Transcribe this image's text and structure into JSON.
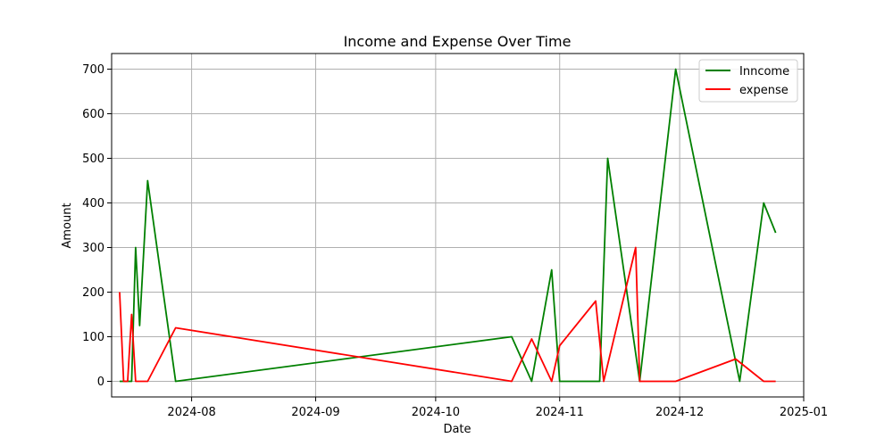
{
  "chart_data": {
    "type": "line",
    "title": "Income and Expense Over Time",
    "xlabel": "Date",
    "ylabel": "Amount",
    "xlim": [
      "2024-07-12",
      "2025-01-01"
    ],
    "ylim": [
      -35,
      735
    ],
    "x_ticks": [
      "2024-08-01",
      "2024-09-01",
      "2024-10-01",
      "2024-11-01",
      "2024-12-01",
      "2025-01-01"
    ],
    "x_tick_labels": [
      "2024-08",
      "2024-09",
      "2024-10",
      "2024-11",
      "2024-12",
      "2025-01"
    ],
    "y_ticks": [
      0,
      100,
      200,
      300,
      400,
      500,
      600,
      700
    ],
    "y_tick_labels": [
      "0",
      "100",
      "200",
      "300",
      "400",
      "500",
      "600",
      "700"
    ],
    "grid": true,
    "legend_position": "top-right",
    "series": [
      {
        "name": "Inncome",
        "color": "#008000",
        "points": [
          {
            "x": "2024-07-14",
            "y": 0
          },
          {
            "x": "2024-07-17",
            "y": 0
          },
          {
            "x": "2024-07-18",
            "y": 300
          },
          {
            "x": "2024-07-19",
            "y": 125
          },
          {
            "x": "2024-07-21",
            "y": 450
          },
          {
            "x": "2024-07-28",
            "y": 0
          },
          {
            "x": "2024-10-20",
            "y": 100
          },
          {
            "x": "2024-10-25",
            "y": 0
          },
          {
            "x": "2024-10-30",
            "y": 250
          },
          {
            "x": "2024-11-01",
            "y": 0
          },
          {
            "x": "2024-11-11",
            "y": 0
          },
          {
            "x": "2024-11-13",
            "y": 500
          },
          {
            "x": "2024-11-21",
            "y": 0
          },
          {
            "x": "2024-11-30",
            "y": 700
          },
          {
            "x": "2024-12-16",
            "y": 0
          },
          {
            "x": "2024-12-22",
            "y": 400
          },
          {
            "x": "2024-12-25",
            "y": 333
          }
        ]
      },
      {
        "name": "expense",
        "color": "#ff0000",
        "points": [
          {
            "x": "2024-07-14",
            "y": 200
          },
          {
            "x": "2024-07-15",
            "y": 0
          },
          {
            "x": "2024-07-16",
            "y": 0
          },
          {
            "x": "2024-07-17",
            "y": 150
          },
          {
            "x": "2024-07-18",
            "y": 0
          },
          {
            "x": "2024-07-21",
            "y": 0
          },
          {
            "x": "2024-07-28",
            "y": 120
          },
          {
            "x": "2024-10-20",
            "y": 0
          },
          {
            "x": "2024-10-25",
            "y": 95
          },
          {
            "x": "2024-10-30",
            "y": 0
          },
          {
            "x": "2024-11-01",
            "y": 80
          },
          {
            "x": "2024-11-10",
            "y": 180
          },
          {
            "x": "2024-11-12",
            "y": 0
          },
          {
            "x": "2024-11-20",
            "y": 300
          },
          {
            "x": "2024-11-21",
            "y": 0
          },
          {
            "x": "2024-11-30",
            "y": 0
          },
          {
            "x": "2024-12-15",
            "y": 50
          },
          {
            "x": "2024-12-22",
            "y": 0
          },
          {
            "x": "2024-12-25",
            "y": 0
          }
        ]
      }
    ]
  }
}
